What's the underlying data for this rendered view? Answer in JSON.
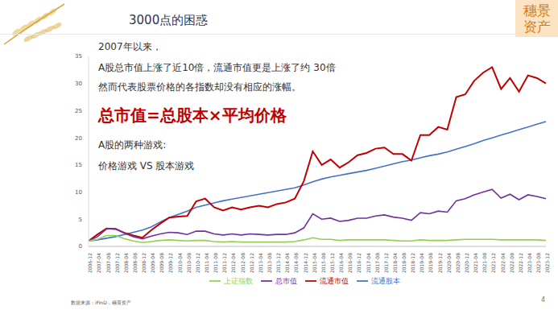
{
  "chart_data": {
    "type": "line",
    "title": "3000点的困惑",
    "annotations": [
      "2007年以来，",
      "A股总市值上涨了近10倍，流通市值更是上涨了约 30倍",
      "然而代表股票价格的各指数却没有相应的涨幅。",
      "总市值=总股本×平均价格",
      "A股的两种游戏:",
      "价格游戏 VS 股本游戏"
    ],
    "categories": [
      "2006-12",
      "2007-04",
      "2007-08",
      "2007-12",
      "2008-04",
      "2008-08",
      "2008-12",
      "2009-04",
      "2009-08",
      "2009-12",
      "2010-04",
      "2010-08",
      "2010-12",
      "2011-04",
      "2011-08",
      "2011-12",
      "2012-04",
      "2012-08",
      "2012-12",
      "2013-04",
      "2013-08",
      "2013-12",
      "2014-04",
      "2014-08",
      "2014-12",
      "2015-04",
      "2015-08",
      "2015-12",
      "2016-04",
      "2016-08",
      "2016-12",
      "2017-04",
      "2017-08",
      "2017-12",
      "2018-04",
      "2018-08",
      "2018-12",
      "2019-04",
      "2019-08",
      "2019-12",
      "2020-04",
      "2020-08",
      "2020-12",
      "2021-04",
      "2021-08",
      "2021-12",
      "2022-04",
      "2022-08",
      "2022-12",
      "2023-04",
      "2023-08",
      "2023-12"
    ],
    "series": [
      {
        "name": "流通股本",
        "color": "#4472c4",
        "values": [
          1,
          1.2,
          1.5,
          1.8,
          2.2,
          2.6,
          3.0,
          3.6,
          4.5,
          5.3,
          5.9,
          6.5,
          7.2,
          7.6,
          8.0,
          8.4,
          8.7,
          9.0,
          9.3,
          9.6,
          9.9,
          10.2,
          10.5,
          10.8,
          11.3,
          11.9,
          12.4,
          12.8,
          13.1,
          13.4,
          13.7,
          14.0,
          14.4,
          14.8,
          15.2,
          15.6,
          15.9,
          16.3,
          16.7,
          17.0,
          17.4,
          17.9,
          18.4,
          18.9,
          19.5,
          20.0,
          20.5,
          21.0,
          21.5,
          22.0,
          22.5,
          23.0
        ]
      },
      {
        "name": "流通市值",
        "color": "#c00000",
        "values": [
          1,
          2.2,
          3.3,
          3.2,
          2.5,
          2.0,
          1.6,
          3.0,
          4.2,
          5.3,
          5.5,
          5.6,
          8.3,
          8.8,
          7.2,
          6.6,
          7.2,
          6.8,
          7.2,
          7.5,
          7.2,
          7.8,
          8.1,
          8.8,
          12.0,
          17.5,
          15.0,
          16.0,
          14.5,
          15.5,
          16.8,
          17.2,
          18.0,
          18.2,
          17.0,
          17.0,
          15.8,
          20.5,
          20.5,
          22.0,
          21.5,
          27.5,
          28.0,
          30.5,
          32.0,
          33.0,
          29.0,
          31.0,
          28.5,
          31.5,
          31.0,
          30.0
        ]
      },
      {
        "name": "总市值",
        "color": "#7030a0",
        "values": [
          1,
          1.8,
          3.2,
          3.3,
          2.4,
          1.8,
          1.4,
          1.9,
          2.3,
          2.6,
          2.5,
          2.2,
          2.8,
          2.8,
          2.3,
          2.1,
          2.3,
          2.1,
          2.3,
          2.2,
          2.1,
          2.2,
          2.2,
          2.5,
          3.4,
          6.0,
          5.0,
          5.2,
          4.6,
          4.8,
          5.2,
          5.2,
          5.6,
          5.8,
          5.4,
          5.2,
          4.8,
          6.2,
          6.0,
          6.5,
          6.3,
          8.4,
          8.8,
          9.5,
          10.0,
          10.5,
          8.9,
          9.6,
          8.6,
          9.5,
          9.2,
          8.8
        ]
      },
      {
        "name": "上证指数",
        "color": "#92d050",
        "values": [
          1,
          1.3,
          2.0,
          2.0,
          1.4,
          1.0,
          0.7,
          0.9,
          1.1,
          1.2,
          1.1,
          1.0,
          1.1,
          1.1,
          0.9,
          0.8,
          0.9,
          0.8,
          0.8,
          0.8,
          0.8,
          0.8,
          0.8,
          0.9,
          1.2,
          1.6,
          1.3,
          1.3,
          1.1,
          1.2,
          1.2,
          1.2,
          1.2,
          1.2,
          1.1,
          1.0,
          1.0,
          1.2,
          1.1,
          1.1,
          1.1,
          1.2,
          1.3,
          1.3,
          1.3,
          1.3,
          1.2,
          1.2,
          1.2,
          1.2,
          1.2,
          1.1
        ]
      }
    ],
    "ylim": [
      0,
      35
    ],
    "yticks": [
      0,
      5,
      10,
      15,
      20,
      25,
      30,
      35
    ],
    "grid": false,
    "legend": "bottom"
  },
  "slide": {
    "brand": "穗景资产",
    "source": "数据来源：iFinD，穗景资产",
    "page": "4"
  }
}
